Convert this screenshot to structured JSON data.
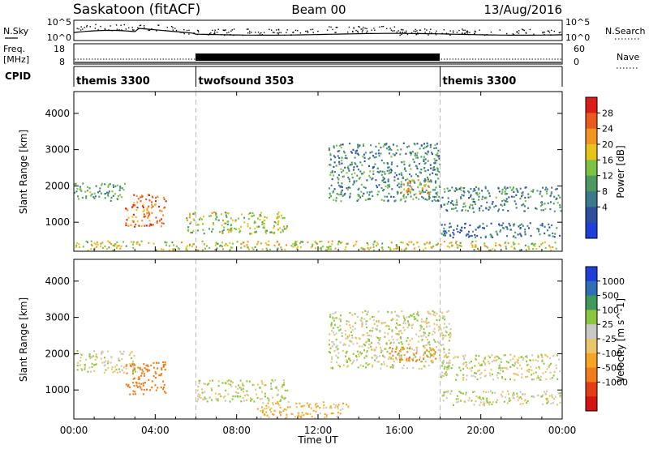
{
  "header": {
    "station": "Saskatoon (fitACF)",
    "beam": "Beam 00",
    "date": "13/Aug/2016"
  },
  "noise_panel": {
    "left_label": "N.Sky",
    "right_label": "N.Search",
    "left_ticks": [
      "10^5",
      "10^0"
    ],
    "right_ticks": [
      "10^5",
      "10^0"
    ]
  },
  "freq_panel": {
    "left_label_1": "Freq.",
    "left_label_2": "[MHz]",
    "right_label": "Nave",
    "left_ticks": [
      "18",
      "8"
    ],
    "right_ticks": [
      "60",
      "0"
    ]
  },
  "cpid_panel": {
    "label": "CPID",
    "segments": [
      {
        "name": "themis 3300",
        "start_h": 0,
        "end_h": 6
      },
      {
        "name": "twofsound 3503",
        "start_h": 6,
        "end_h": 18
      },
      {
        "name": "themis 3300",
        "start_h": 18,
        "end_h": 24
      }
    ]
  },
  "colors": {
    "power_scale": [
      "#1f3fd8",
      "#2e4fa0",
      "#3b7a8a",
      "#4c9a62",
      "#7cc244",
      "#e6c419",
      "#f39321",
      "#ea5a1e",
      "#d81e16"
    ],
    "velocity_scale": [
      "#1f3fd8",
      "#2e6fb8",
      "#3f9a5a",
      "#8cc63e",
      "#c9c9c5",
      "#e9c56b",
      "#f5a523",
      "#f07c1d",
      "#e23d17",
      "#d21511"
    ]
  },
  "chart_data": [
    {
      "type": "heatmap",
      "title": "Power",
      "xlabel": "Time UT",
      "ylabel": "Slant Range [km]",
      "xlim": [
        0,
        24
      ],
      "ylim": [
        200,
        4600
      ],
      "x_ticks": [
        "00:00",
        "04:00",
        "08:00",
        "12:00",
        "16:00",
        "20:00",
        "00:00"
      ],
      "y_ticks": [
        1000,
        2000,
        3000,
        4000
      ],
      "colorbar": {
        "label": "Power [dB]",
        "ticks": [
          4,
          8,
          12,
          16,
          20,
          24,
          28
        ]
      },
      "scatter_regions": [
        {
          "t": [
            0.0,
            2.5
          ],
          "r": [
            1600,
            2100
          ],
          "value_db": 12
        },
        {
          "t": [
            2.5,
            4.5
          ],
          "r": [
            900,
            1800
          ],
          "value_db": 24
        },
        {
          "t": [
            5.5,
            10.5
          ],
          "r": [
            700,
            1300
          ],
          "value_db": 16
        },
        {
          "t": [
            12.5,
            18.0
          ],
          "r": [
            1600,
            3200
          ],
          "value_db": 10
        },
        {
          "t": [
            16.0,
            17.5
          ],
          "r": [
            1800,
            2200
          ],
          "value_db": 20
        },
        {
          "t": [
            18.0,
            24.0
          ],
          "r": [
            1300,
            2000
          ],
          "value_db": 10
        },
        {
          "t": [
            18.0,
            24.0
          ],
          "r": [
            600,
            1000
          ],
          "value_db": 8
        },
        {
          "t": [
            0.0,
            24.0
          ],
          "r": [
            200,
            500
          ],
          "value_db": 18
        }
      ]
    },
    {
      "type": "heatmap",
      "title": "Velocity",
      "xlabel": "Time UT",
      "ylabel": "Slant Range [km]",
      "xlim": [
        0,
        24
      ],
      "ylim": [
        200,
        4600
      ],
      "x_ticks": [
        "00:00",
        "04:00",
        "08:00",
        "12:00",
        "16:00",
        "20:00",
        "00:00"
      ],
      "y_ticks": [
        1000,
        2000,
        3000,
        4000
      ],
      "colorbar": {
        "label": "Velocity [m s^-1]",
        "ticks": [
          1000,
          500,
          100,
          25,
          -25,
          -100,
          -500,
          -1000
        ]
      },
      "scatter_regions": [
        {
          "t": [
            0.0,
            3.0
          ],
          "r": [
            1500,
            2100
          ],
          "value_ms": 0
        },
        {
          "t": [
            2.5,
            4.5
          ],
          "r": [
            900,
            1800
          ],
          "value_ms": -400
        },
        {
          "t": [
            6.0,
            10.5
          ],
          "r": [
            700,
            1300
          ],
          "value_ms": 0
        },
        {
          "t": [
            9.0,
            13.5
          ],
          "r": [
            200,
            700
          ],
          "value_ms": -60
        },
        {
          "t": [
            12.5,
            18.5
          ],
          "r": [
            1600,
            3200
          ],
          "value_ms": 0
        },
        {
          "t": [
            15.5,
            17.8
          ],
          "r": [
            1800,
            2200
          ],
          "value_ms": -300
        },
        {
          "t": [
            18.0,
            24.0
          ],
          "r": [
            1300,
            2000
          ],
          "value_ms": 0
        },
        {
          "t": [
            18.0,
            24.0
          ],
          "r": [
            600,
            1000
          ],
          "value_ms": 0
        }
      ]
    }
  ]
}
